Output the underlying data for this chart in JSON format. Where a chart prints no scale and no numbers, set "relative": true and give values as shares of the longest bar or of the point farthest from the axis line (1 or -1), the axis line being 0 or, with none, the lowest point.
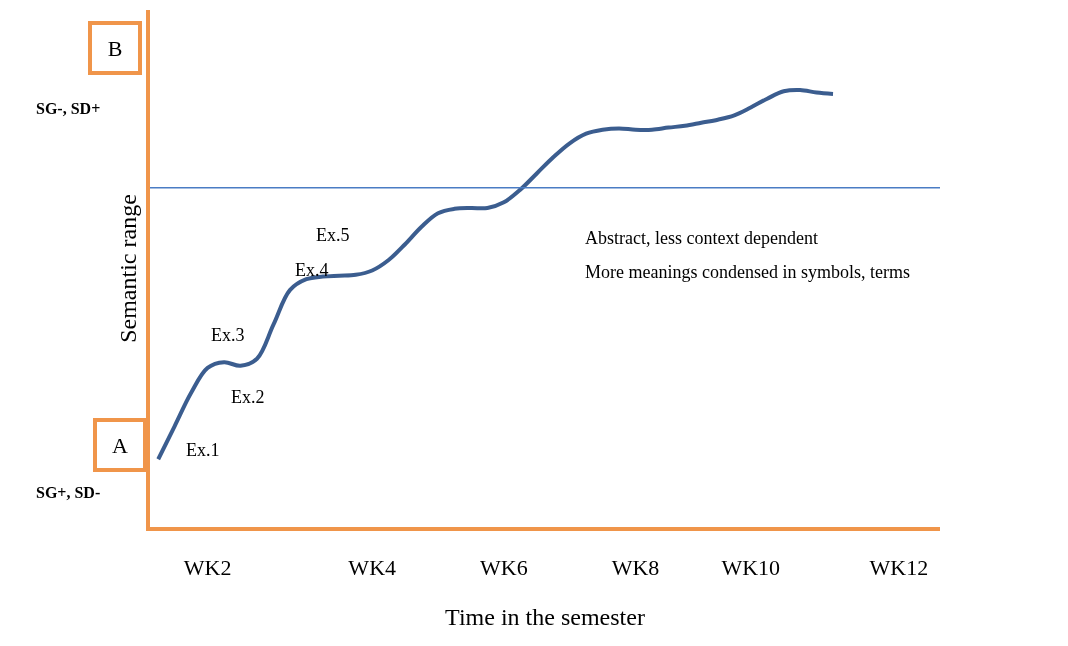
{
  "chart_data": {
    "type": "line",
    "relative": true,
    "xlabel": "Time in the semester",
    "ylabel": "Semantic range",
    "categories": [
      null,
      null,
      null,
      "WK2",
      null,
      null,
      null,
      null,
      null,
      null,
      null,
      null,
      null,
      "WK4",
      null,
      null,
      null,
      null,
      null,
      null,
      null,
      "WK6",
      null,
      null,
      null,
      null,
      null,
      null,
      null,
      "WK8",
      null,
      null,
      null,
      null,
      null,
      null,
      "WK10",
      null,
      null,
      null,
      null,
      null,
      null,
      null,
      null,
      "WK12",
      null,
      null
    ],
    "series": [
      {
        "color": "#3b5d8f",
        "values": [
          0.155,
          0.231,
          0.307,
          0.364,
          0.377,
          0.369,
          0.385,
          0.463,
          0.542,
          0.567,
          0.573,
          0.575,
          0.577,
          0.587,
          0.611,
          0.647,
          0.687,
          0.718,
          0.728,
          0.73,
          0.73,
          0.743,
          0.772,
          0.809,
          0.846,
          0.878,
          0.9,
          0.909,
          0.912,
          0.909,
          0.909,
          0.914,
          0.918,
          0.925,
          0.932,
          0.942,
          0.96,
          0.98,
          0.997,
          1.0,
          0.994,
          0.991,
          null,
          null,
          null,
          null,
          null,
          null
        ]
      }
    ],
    "ref_lines": [
      {
        "axis": "y",
        "value": 0.776,
        "color": "#4a7cc4"
      }
    ],
    "annotations": [
      "Ex.1",
      "Ex.2",
      "Ex.3",
      "Ex.4",
      "Ex.5",
      "A",
      "B",
      "SG+, SD-",
      "SG-, SD+",
      "Abstract, less context dependent",
      "More meanings condensed in symbols, terms"
    ],
    "marker": "none",
    "line_style": "solid"
  }
}
